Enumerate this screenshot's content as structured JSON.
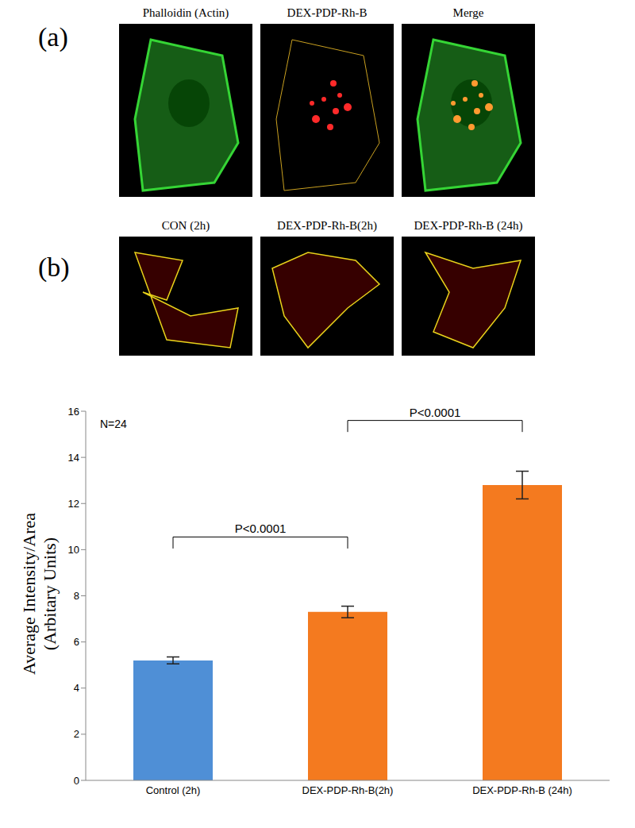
{
  "panel_a": {
    "label": "(a)",
    "images": [
      "Phalloidin (Actin)",
      "DEX-PDP-Rh-B",
      "Merge"
    ]
  },
  "panel_b": {
    "label": "(b)",
    "images": [
      "CON  (2h)",
      "DEX-PDP-Rh-B(2h)",
      "DEX-PDP-Rh-B (24h)"
    ]
  },
  "chart_data": {
    "type": "bar",
    "y_label": [
      "Average Intensity/Area",
      "(Arbitary Units)"
    ],
    "categories": [
      "Control (2h)",
      "DEX-PDP-Rh-B(2h)",
      "DEX-PDP-Rh-B (24h)"
    ],
    "values": [
      5.2,
      7.3,
      12.8
    ],
    "errors": [
      0.15,
      0.25,
      0.6
    ],
    "colors": [
      "#4f8fd6",
      "#f47a1f",
      "#f47a1f"
    ],
    "ylim": [
      0,
      16
    ],
    "yticks": [
      0,
      2,
      4,
      6,
      8,
      10,
      12,
      14,
      16
    ],
    "grid": false,
    "annotations": [
      "N=24"
    ],
    "comparisons": [
      {
        "pair": [
          0,
          1
        ],
        "label": "P<0.0001"
      },
      {
        "pair": [
          1,
          2
        ],
        "label": "P<0.0001"
      }
    ]
  }
}
